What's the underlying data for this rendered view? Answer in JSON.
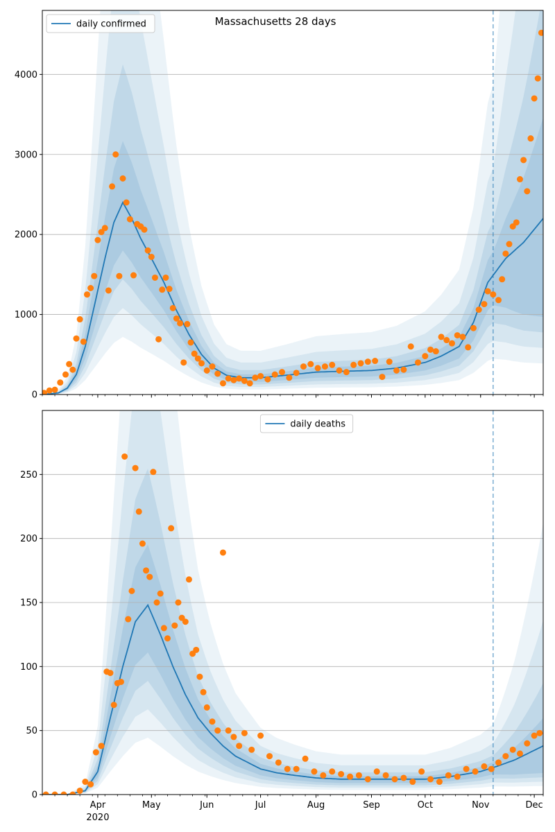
{
  "chart_data": [
    {
      "type": "line",
      "title": "Massachusetts 28 days",
      "xlabel": "",
      "ylabel": "",
      "ylim": [
        0,
        4800
      ],
      "yticks": [
        0,
        1000,
        2000,
        3000,
        4000
      ],
      "xlim": [
        "2020-03-01",
        "2020-12-06"
      ],
      "xticks": [
        {
          "date": "2020-04-01",
          "label": "Apr",
          "sublabel": "2020"
        },
        {
          "date": "2020-05-01",
          "label": "May"
        },
        {
          "date": "2020-06-01",
          "label": "Jun"
        },
        {
          "date": "2020-07-01",
          "label": "Jul"
        },
        {
          "date": "2020-08-01",
          "label": "Aug"
        },
        {
          "date": "2020-09-01",
          "label": "Sep"
        },
        {
          "date": "2020-10-01",
          "label": "Oct"
        },
        {
          "date": "2020-11-01",
          "label": "Nov"
        },
        {
          "date": "2020-12-01",
          "label": "Dec"
        }
      ],
      "grid": "horizontal",
      "legend": {
        "position": "top-left",
        "entries": [
          "daily confirmed"
        ]
      },
      "vline_date": "2020-11-08",
      "colors": {
        "line": "#1f77b4",
        "points": "#ff7f0e",
        "band": "#1f77b4"
      },
      "series": [
        {
          "name": "daily confirmed",
          "kind": "line",
          "x": [
            "2020-03-01",
            "2020-03-10",
            "2020-03-15",
            "2020-03-20",
            "2020-03-25",
            "2020-03-30",
            "2020-04-05",
            "2020-04-10",
            "2020-04-15",
            "2020-04-20",
            "2020-04-25",
            "2020-05-01",
            "2020-05-08",
            "2020-05-15",
            "2020-05-22",
            "2020-05-29",
            "2020-06-05",
            "2020-06-12",
            "2020-06-20",
            "2020-07-01",
            "2020-07-15",
            "2020-08-01",
            "2020-08-15",
            "2020-09-01",
            "2020-09-15",
            "2020-10-01",
            "2020-10-10",
            "2020-10-20",
            "2020-10-28",
            "2020-11-05",
            "2020-11-15",
            "2020-11-25",
            "2020-12-06"
          ],
          "y": [
            0,
            20,
            80,
            250,
            600,
            1100,
            1700,
            2150,
            2400,
            2200,
            1950,
            1700,
            1400,
            1050,
            750,
            500,
            330,
            240,
            210,
            210,
            240,
            280,
            290,
            300,
            330,
            400,
            480,
            600,
            900,
            1400,
            1700,
            1900,
            2200
          ]
        },
        {
          "name": "observed daily confirmed",
          "kind": "scatter",
          "x": [
            "2020-03-02",
            "2020-03-05",
            "2020-03-08",
            "2020-03-11",
            "2020-03-14",
            "2020-03-16",
            "2020-03-18",
            "2020-03-20",
            "2020-03-22",
            "2020-03-24",
            "2020-03-26",
            "2020-03-28",
            "2020-03-30",
            "2020-04-01",
            "2020-04-03",
            "2020-04-05",
            "2020-04-07",
            "2020-04-09",
            "2020-04-11",
            "2020-04-13",
            "2020-04-15",
            "2020-04-17",
            "2020-04-19",
            "2020-04-21",
            "2020-04-23",
            "2020-04-25",
            "2020-04-27",
            "2020-04-29",
            "2020-05-01",
            "2020-05-03",
            "2020-05-05",
            "2020-05-07",
            "2020-05-09",
            "2020-05-11",
            "2020-05-13",
            "2020-05-15",
            "2020-05-17",
            "2020-05-19",
            "2020-05-21",
            "2020-05-23",
            "2020-05-25",
            "2020-05-27",
            "2020-05-29",
            "2020-06-01",
            "2020-06-04",
            "2020-06-07",
            "2020-06-10",
            "2020-06-13",
            "2020-06-16",
            "2020-06-19",
            "2020-06-22",
            "2020-06-25",
            "2020-06-28",
            "2020-07-01",
            "2020-07-05",
            "2020-07-09",
            "2020-07-13",
            "2020-07-17",
            "2020-07-21",
            "2020-07-25",
            "2020-07-29",
            "2020-08-02",
            "2020-08-06",
            "2020-08-10",
            "2020-08-14",
            "2020-08-18",
            "2020-08-22",
            "2020-08-26",
            "2020-08-30",
            "2020-09-03",
            "2020-09-07",
            "2020-09-11",
            "2020-09-15",
            "2020-09-19",
            "2020-09-23",
            "2020-09-27",
            "2020-10-01",
            "2020-10-04",
            "2020-10-07",
            "2020-10-10",
            "2020-10-13",
            "2020-10-16",
            "2020-10-19",
            "2020-10-22",
            "2020-10-25",
            "2020-10-28",
            "2020-10-31",
            "2020-11-03",
            "2020-11-05",
            "2020-11-08",
            "2020-11-11",
            "2020-11-13",
            "2020-11-15",
            "2020-11-17",
            "2020-11-19",
            "2020-11-21",
            "2020-11-23",
            "2020-11-25",
            "2020-11-27",
            "2020-11-29",
            "2020-12-01",
            "2020-12-03",
            "2020-12-05"
          ],
          "y": [
            20,
            50,
            60,
            150,
            250,
            380,
            310,
            700,
            940,
            660,
            1250,
            1330,
            1480,
            1930,
            2030,
            2080,
            1300,
            2600,
            3000,
            1480,
            2700,
            2400,
            2190,
            1490,
            2130,
            2100,
            2060,
            1800,
            1720,
            1460,
            690,
            1310,
            1460,
            1320,
            1080,
            950,
            890,
            400,
            880,
            650,
            510,
            450,
            390,
            300,
            350,
            260,
            140,
            200,
            180,
            200,
            170,
            140,
            210,
            230,
            190,
            250,
            280,
            210,
            270,
            350,
            380,
            330,
            350,
            370,
            300,
            280,
            370,
            390,
            410,
            420,
            220,
            410,
            300,
            310,
            600,
            400,
            480,
            560,
            540,
            720,
            680,
            640,
            740,
            720,
            590,
            830,
            1060,
            1130,
            1290,
            1250,
            1180,
            1440,
            1760,
            1880,
            2100,
            2150,
            2690,
            2930,
            2540,
            3200,
            3700,
            3950,
            4520
          ]
        }
      ]
    },
    {
      "type": "line",
      "title": "",
      "xlabel": "",
      "ylabel": "",
      "ylim": [
        0,
        300
      ],
      "yticks": [
        0,
        50,
        100,
        150,
        200,
        250
      ],
      "xlim": [
        "2020-03-01",
        "2020-12-06"
      ],
      "xticks": [
        {
          "date": "2020-04-01",
          "label": "Apr",
          "sublabel": "2020"
        },
        {
          "date": "2020-05-01",
          "label": "May"
        },
        {
          "date": "2020-06-01",
          "label": "Jun"
        },
        {
          "date": "2020-07-01",
          "label": "Jul"
        },
        {
          "date": "2020-08-01",
          "label": "Aug"
        },
        {
          "date": "2020-09-01",
          "label": "Sep"
        },
        {
          "date": "2020-10-01",
          "label": "Oct"
        },
        {
          "date": "2020-11-01",
          "label": "Nov"
        },
        {
          "date": "2020-12-01",
          "label": "Dec"
        }
      ],
      "grid": "horizontal",
      "legend": {
        "position": "top-center",
        "entries": [
          "daily deaths"
        ]
      },
      "vline_date": "2020-11-08",
      "colors": {
        "line": "#1f77b4",
        "points": "#ff7f0e",
        "band": "#1f77b4"
      },
      "series": [
        {
          "name": "daily deaths",
          "kind": "line",
          "x": [
            "2020-03-01",
            "2020-03-15",
            "2020-03-25",
            "2020-04-01",
            "2020-04-08",
            "2020-04-15",
            "2020-04-22",
            "2020-04-29",
            "2020-05-06",
            "2020-05-13",
            "2020-05-20",
            "2020-05-27",
            "2020-06-03",
            "2020-06-10",
            "2020-06-17",
            "2020-06-24",
            "2020-07-01",
            "2020-07-10",
            "2020-07-20",
            "2020-08-01",
            "2020-08-15",
            "2020-09-01",
            "2020-09-15",
            "2020-10-01",
            "2020-10-15",
            "2020-11-01",
            "2020-11-10",
            "2020-11-20",
            "2020-12-06"
          ],
          "y": [
            0,
            0,
            3,
            18,
            60,
            100,
            135,
            148,
            125,
            100,
            78,
            60,
            48,
            38,
            30,
            25,
            20,
            17,
            15,
            13,
            12,
            12,
            12,
            12,
            14,
            18,
            22,
            27,
            38
          ]
        },
        {
          "name": "observed daily deaths",
          "kind": "scatter",
          "x": [
            "2020-03-03",
            "2020-03-08",
            "2020-03-13",
            "2020-03-18",
            "2020-03-22",
            "2020-03-25",
            "2020-03-28",
            "2020-03-31",
            "2020-04-03",
            "2020-04-06",
            "2020-04-08",
            "2020-04-10",
            "2020-04-12",
            "2020-04-14",
            "2020-04-16",
            "2020-04-18",
            "2020-04-20",
            "2020-04-22",
            "2020-04-24",
            "2020-04-26",
            "2020-04-28",
            "2020-04-30",
            "2020-05-02",
            "2020-05-04",
            "2020-05-06",
            "2020-05-08",
            "2020-05-10",
            "2020-05-12",
            "2020-05-14",
            "2020-05-16",
            "2020-05-18",
            "2020-05-20",
            "2020-05-22",
            "2020-05-24",
            "2020-05-26",
            "2020-05-28",
            "2020-05-30",
            "2020-06-01",
            "2020-06-04",
            "2020-06-07",
            "2020-06-10",
            "2020-06-13",
            "2020-06-16",
            "2020-06-19",
            "2020-06-22",
            "2020-06-26",
            "2020-07-01",
            "2020-07-06",
            "2020-07-11",
            "2020-07-16",
            "2020-07-21",
            "2020-07-26",
            "2020-07-31",
            "2020-08-05",
            "2020-08-10",
            "2020-08-15",
            "2020-08-20",
            "2020-08-25",
            "2020-08-30",
            "2020-09-04",
            "2020-09-09",
            "2020-09-14",
            "2020-09-19",
            "2020-09-24",
            "2020-09-29",
            "2020-10-04",
            "2020-10-09",
            "2020-10-14",
            "2020-10-19",
            "2020-10-24",
            "2020-10-29",
            "2020-11-03",
            "2020-11-07",
            "2020-11-11",
            "2020-11-15",
            "2020-11-19",
            "2020-11-23",
            "2020-11-27",
            "2020-12-01",
            "2020-12-04"
          ],
          "y": [
            0,
            0,
            0,
            0,
            3,
            10,
            8,
            33,
            38,
            96,
            95,
            70,
            87,
            88,
            264,
            137,
            159,
            255,
            221,
            196,
            175,
            170,
            252,
            150,
            157,
            130,
            122,
            208,
            132,
            150,
            138,
            135,
            168,
            110,
            113,
            92,
            80,
            68,
            57,
            50,
            189,
            50,
            45,
            38,
            48,
            35,
            46,
            30,
            25,
            20,
            20,
            28,
            18,
            15,
            18,
            16,
            14,
            15,
            12,
            18,
            15,
            12,
            13,
            10,
            18,
            12,
            10,
            15,
            14,
            20,
            18,
            22,
            20,
            25,
            30,
            35,
            32,
            40,
            46,
            48
          ]
        }
      ]
    }
  ]
}
